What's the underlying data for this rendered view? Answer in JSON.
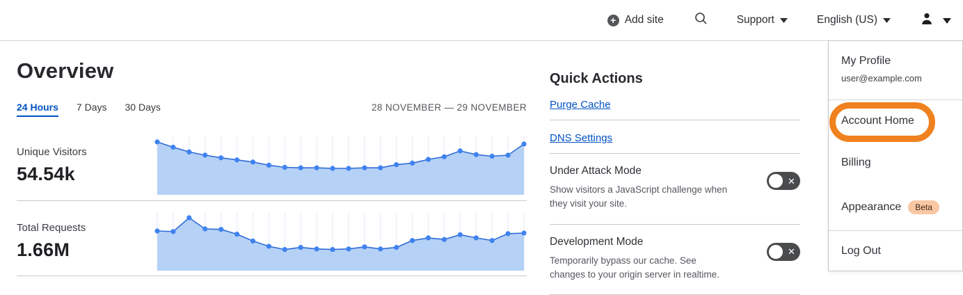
{
  "topnav": {
    "add_site_label": "Add site",
    "support_label": "Support",
    "language_label": "English (US)"
  },
  "overview": {
    "title": "Overview",
    "tabs": [
      {
        "label": "24 Hours",
        "active": true
      },
      {
        "label": "7 Days",
        "active": false
      },
      {
        "label": "30 Days",
        "active": false
      }
    ],
    "date_range": "28 NOVEMBER — 29 NOVEMBER",
    "stats": [
      {
        "label": "Unique Visitors",
        "value": "54.54k"
      },
      {
        "label": "Total Requests",
        "value": "1.66M"
      }
    ]
  },
  "quick_actions": {
    "title": "Quick Actions",
    "links": [
      {
        "label": "Purge Cache"
      },
      {
        "label": "DNS Settings"
      }
    ],
    "toggles": [
      {
        "title": "Under Attack Mode",
        "desc": "Show visitors a JavaScript challenge when they visit your site.",
        "state": "off"
      },
      {
        "title": "Development Mode",
        "desc": "Temporarily bypass our cache. See changes to your origin server in realtime.",
        "state": "off"
      }
    ]
  },
  "user_menu": {
    "profile_name": "My Profile",
    "profile_email": "user@example.com",
    "account_home": "Account Home",
    "billing": "Billing",
    "appearance": "Appearance",
    "beta_badge": "Beta",
    "log_out": "Log Out",
    "highlighted_item": "Account Home"
  },
  "colors": {
    "link_blue": "#0051c3",
    "chart_fill": "#b5d1f5",
    "chart_line": "#2e6bd8",
    "chart_dot": "#3f82f0",
    "chart_grid": "#e9eef8",
    "toggle_off_bg": "#4a4b4d",
    "annotation_orange": "#f0811f",
    "beta_badge_bg": "#f9c7a3"
  },
  "chart_data": [
    {
      "type": "area",
      "title": "Unique Visitors",
      "total_label": "54.54k",
      "period": "24 Hours (28 November — 29 November)",
      "xlabel": "",
      "ylabel": "",
      "ylim": [
        0,
        1
      ],
      "grid": "vertical",
      "legend": "none",
      "values_relative": [
        1.0,
        0.9,
        0.81,
        0.75,
        0.7,
        0.66,
        0.62,
        0.56,
        0.52,
        0.51,
        0.51,
        0.5,
        0.5,
        0.51,
        0.51,
        0.57,
        0.6,
        0.67,
        0.72,
        0.83,
        0.76,
        0.73,
        0.75,
        0.96
      ]
    },
    {
      "type": "area",
      "title": "Total Requests",
      "total_label": "1.66M",
      "period": "24 Hours (28 November — 29 November)",
      "xlabel": "",
      "ylabel": "",
      "ylim": [
        0,
        1
      ],
      "grid": "vertical",
      "legend": "none",
      "values_relative": [
        0.75,
        0.74,
        1.0,
        0.79,
        0.78,
        0.69,
        0.56,
        0.46,
        0.4,
        0.44,
        0.41,
        0.4,
        0.41,
        0.45,
        0.41,
        0.44,
        0.57,
        0.62,
        0.59,
        0.68,
        0.62,
        0.57,
        0.7,
        0.71
      ]
    }
  ]
}
